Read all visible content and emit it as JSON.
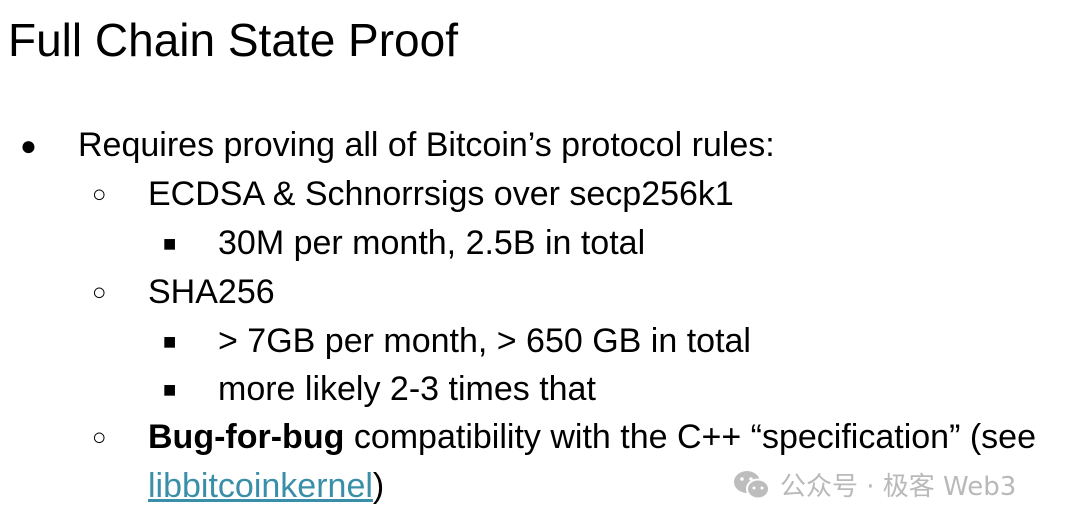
{
  "slide": {
    "title": "Full Chain State Proof",
    "bullets": [
      {
        "level": 1,
        "marker": "●",
        "text": "Requires proving all of Bitcoin’s protocol rules:"
      },
      {
        "level": 2,
        "marker": "○",
        "text": "ECDSA & Schnorrsigs over secp256k1"
      },
      {
        "level": 3,
        "marker": "■",
        "text": "30M per month, 2.5B in total"
      },
      {
        "level": 2,
        "marker": "○",
        "text": "SHA256"
      },
      {
        "level": 3,
        "marker": "■",
        "text": "> 7GB per month, > 650 GB in total"
      },
      {
        "level": 3,
        "marker": "■",
        "text": "more likely 2-3 times that"
      },
      {
        "level": 2,
        "marker": "○",
        "bold": "Bug-for-bug",
        "text": " compatibility with the C++ “specification” (see"
      }
    ],
    "continuation": {
      "link": "libbitcoinkernel",
      "after": ")"
    },
    "link_color": "#3a8fa8"
  },
  "watermark": {
    "icon": "wechat-icon",
    "text": "公众号 · 极客 Web3"
  }
}
